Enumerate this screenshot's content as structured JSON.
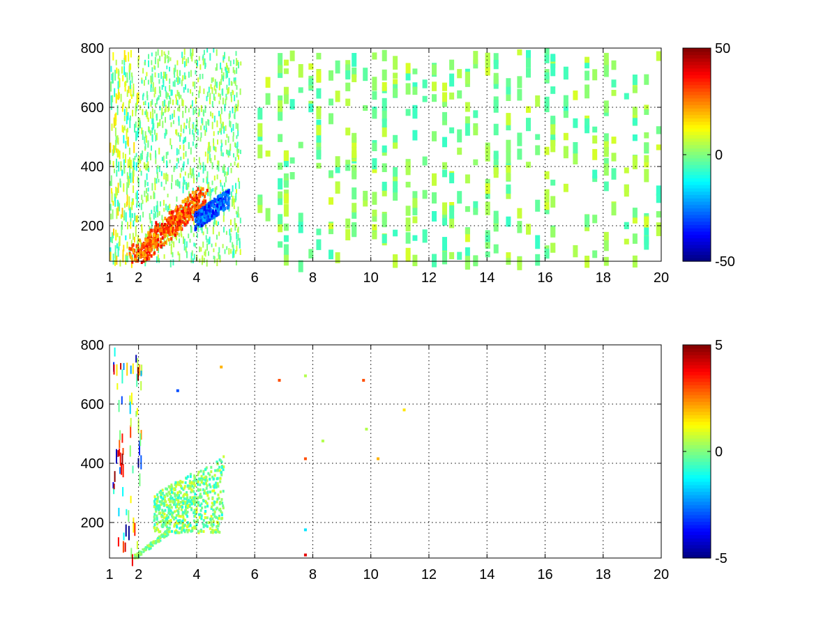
{
  "chart_data": [
    {
      "type": "heatmap",
      "title": "",
      "xlabel": "",
      "ylabel": "",
      "xlim": [
        1,
        20
      ],
      "ylim": [
        80,
        800
      ],
      "xticks": [
        1,
        2,
        4,
        6,
        8,
        10,
        12,
        14,
        16,
        18,
        20
      ],
      "xticklabels": [
        "1",
        "2",
        "4",
        "6",
        "8",
        "10",
        "12",
        "14",
        "16",
        "18",
        "20"
      ],
      "yticks": [
        200,
        400,
        600,
        800
      ],
      "yticklabels": [
        "200",
        "400",
        "600",
        "800"
      ],
      "grid": true,
      "colormap": "jet",
      "colorbar": {
        "range": [
          -50,
          50
        ],
        "ticks": [
          -50,
          0,
          50
        ],
        "ticklabels": [
          "-50",
          "0",
          "50"
        ]
      },
      "description_of_field": "dense scattered cells across full x range; warm ridge (~20 to 40) near x 2.5-4, y 200-300; cool band (~-30) near x 4-5, y 200-280",
      "features": [
        {
          "kind": "ridge",
          "x": [
            1.5,
            2.5,
            3.0,
            3.5,
            4.0
          ],
          "y": [
            90,
            150,
            220,
            240,
            290
          ],
          "value": 35
        },
        {
          "kind": "band",
          "x": [
            4.0,
            4.5,
            5.0
          ],
          "y": [
            240,
            260,
            300
          ],
          "value": -30
        }
      ]
    },
    {
      "type": "heatmap",
      "title": "",
      "xlabel": "",
      "ylabel": "",
      "xlim": [
        1,
        20
      ],
      "ylim": [
        80,
        800
      ],
      "xticks": [
        1,
        2,
        4,
        6,
        8,
        10,
        12,
        14,
        16,
        18,
        20
      ],
      "xticklabels": [
        "1",
        "2",
        "4",
        "6",
        "8",
        "10",
        "12",
        "14",
        "16",
        "18",
        "20"
      ],
      "yticks": [
        200,
        400,
        600,
        800
      ],
      "yticklabels": [
        "200",
        "400",
        "600",
        "800"
      ],
      "grid": true,
      "colormap": "jet",
      "colorbar": {
        "range": [
          -5,
          5
        ],
        "ticks": [
          -5,
          0,
          5
        ],
        "ticklabels": [
          "-5",
          "0",
          "5"
        ]
      },
      "description_of_field": "sparse cells; cluster of near-zero values for x 2.5-5, y 180-450; few isolated points elsewhere",
      "features": [
        {
          "kind": "cluster",
          "x": [
            2.5,
            5.0
          ],
          "y": [
            180,
            450
          ],
          "value": 0
        }
      ]
    }
  ]
}
